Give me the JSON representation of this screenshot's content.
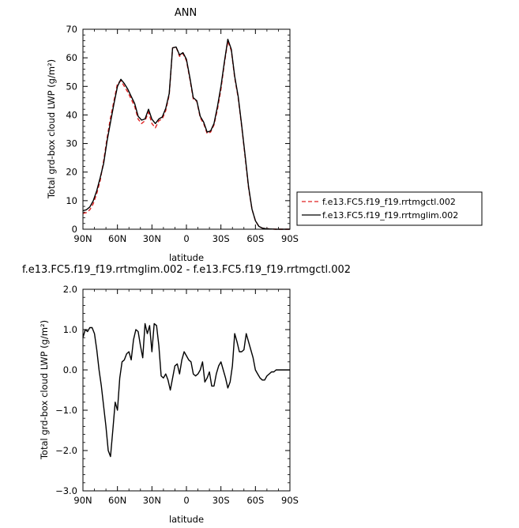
{
  "chart_data": [
    {
      "type": "line",
      "title": "ANN",
      "xlabel": "latitude",
      "ylabel": "Total grd-box cloud LWP (g/m²)",
      "ylim": [
        0,
        70
      ],
      "yticks": [
        "0",
        "10",
        "20",
        "30",
        "40",
        "50",
        "60",
        "70"
      ],
      "xlim": [
        90,
        -90
      ],
      "xticks": [
        "90N",
        "60N",
        "30N",
        "0",
        "30S",
        "60S",
        "90S"
      ],
      "legend_placement": "right",
      "x": [
        90,
        87,
        84,
        81,
        78,
        75,
        72,
        69,
        66,
        63,
        60,
        57,
        54,
        51,
        48,
        45,
        42,
        39,
        36,
        33,
        30,
        27,
        24,
        21,
        18,
        15,
        12,
        9,
        6,
        3,
        0,
        -3,
        -6,
        -9,
        -12,
        -15,
        -18,
        -21,
        -24,
        -27,
        -30,
        -33,
        -36,
        -39,
        -42,
        -45,
        -48,
        -51,
        -54,
        -57,
        -60,
        -63,
        -66,
        -69,
        -72,
        -75,
        -78,
        -81,
        -84,
        -87,
        -90
      ],
      "series": [
        {
          "name": "f.e13.FC5.f19_f19.rrtmgctl.002",
          "color": "#e02020",
          "dash": "dashed",
          "values": [
            5.5,
            5.8,
            6.8,
            9,
            12.5,
            17,
            24,
            32,
            39,
            45,
            51,
            52,
            50,
            48,
            45.5,
            43,
            38.5,
            37,
            38,
            41,
            37,
            35.5,
            38,
            38.6,
            41.5,
            47,
            63.5,
            63.8,
            60.5,
            61.5,
            59,
            52.5,
            45.5,
            44.8,
            39,
            37,
            33.5,
            34,
            36.5,
            42,
            49,
            58,
            65.8,
            62.5,
            53,
            46,
            36,
            25.5,
            14.5,
            7,
            3,
            1,
            0.4,
            0.2,
            0.1,
            0.05,
            0,
            0,
            0,
            0,
            0
          ]
        },
        {
          "name": "f.e13.FC5.f19_f19.rrtmglim.002",
          "color": "#000000",
          "dash": "solid",
          "values": [
            6.5,
            6.8,
            7.8,
            10,
            13.5,
            18,
            23,
            31,
            37.5,
            44,
            50,
            52.5,
            51,
            49,
            46.5,
            44,
            39.5,
            38.2,
            38.6,
            42,
            38.5,
            37,
            38.6,
            39.3,
            42.3,
            47.5,
            63.5,
            63.8,
            61,
            61.8,
            59.5,
            53,
            46,
            45,
            39.5,
            37.5,
            34,
            34.4,
            37,
            43,
            50,
            58.5,
            66.5,
            63,
            53.5,
            46.5,
            36.5,
            26,
            15,
            7,
            3,
            1,
            0.4,
            0.2,
            0.1,
            0.05,
            0,
            0,
            0,
            0,
            0
          ]
        }
      ]
    },
    {
      "type": "line",
      "title": "f.e13.FC5.f19_f19.rrtmglim.002 - f.e13.FC5.f19_f19.rrtmgctl.002",
      "xlabel": "latitude",
      "ylabel": "Total grd-box cloud LWP (g/m²)",
      "ylim": [
        -3,
        2
      ],
      "yticks": [
        "−3.0",
        "−2.0",
        "−1.0",
        "0.0",
        "1.0",
        "2.0"
      ],
      "xlim": [
        90,
        -90
      ],
      "xticks": [
        "90N",
        "60N",
        "30N",
        "0",
        "30S",
        "60S",
        "90S"
      ],
      "x": [
        90,
        88,
        86,
        84,
        82,
        80,
        78,
        76,
        74,
        72,
        70,
        68,
        66,
        64,
        62,
        60,
        58,
        56,
        54,
        52,
        50,
        48,
        46,
        44,
        42,
        40,
        38,
        36,
        34,
        32,
        30,
        28,
        26,
        24,
        22,
        20,
        18,
        16,
        14,
        12,
        10,
        8,
        6,
        4,
        2,
        0,
        -2,
        -4,
        -6,
        -8,
        -10,
        -12,
        -14,
        -16,
        -18,
        -20,
        -22,
        -24,
        -26,
        -28,
        -30,
        -32,
        -34,
        -36,
        -38,
        -40,
        -42,
        -44,
        -46,
        -48,
        -50,
        -52,
        -54,
        -56,
        -58,
        -60,
        -62,
        -64,
        -66,
        -68,
        -70,
        -72,
        -74,
        -76,
        -78,
        -80,
        -82,
        -84,
        -86,
        -88,
        -90
      ],
      "series": [
        {
          "color": "#000000",
          "values": [
            0.8,
            1.0,
            0.95,
            1.05,
            1.05,
            0.9,
            0.5,
            0.0,
            -0.4,
            -0.9,
            -1.4,
            -2.0,
            -2.15,
            -1.5,
            -0.8,
            -1.0,
            -0.2,
            0.2,
            0.25,
            0.4,
            0.45,
            0.25,
            0.75,
            1.0,
            0.95,
            0.6,
            0.3,
            1.15,
            0.9,
            1.1,
            0.45,
            1.15,
            1.1,
            0.6,
            -0.15,
            -0.2,
            -0.1,
            -0.25,
            -0.5,
            -0.2,
            0.1,
            0.15,
            -0.1,
            0.25,
            0.45,
            0.35,
            0.25,
            0.2,
            -0.1,
            -0.15,
            -0.1,
            0.0,
            0.2,
            -0.3,
            -0.2,
            -0.05,
            -0.4,
            -0.4,
            -0.1,
            0.1,
            0.2,
            0.0,
            -0.2,
            -0.45,
            -0.3,
            0.1,
            0.9,
            0.7,
            0.45,
            0.45,
            0.5,
            0.9,
            0.7,
            0.5,
            0.3,
            0.0,
            -0.1,
            -0.2,
            -0.25,
            -0.25,
            -0.15,
            -0.1,
            -0.05,
            -0.05,
            0.0,
            0.0,
            0.0,
            0.0,
            0.0,
            0.0,
            0.0
          ]
        }
      ]
    }
  ]
}
